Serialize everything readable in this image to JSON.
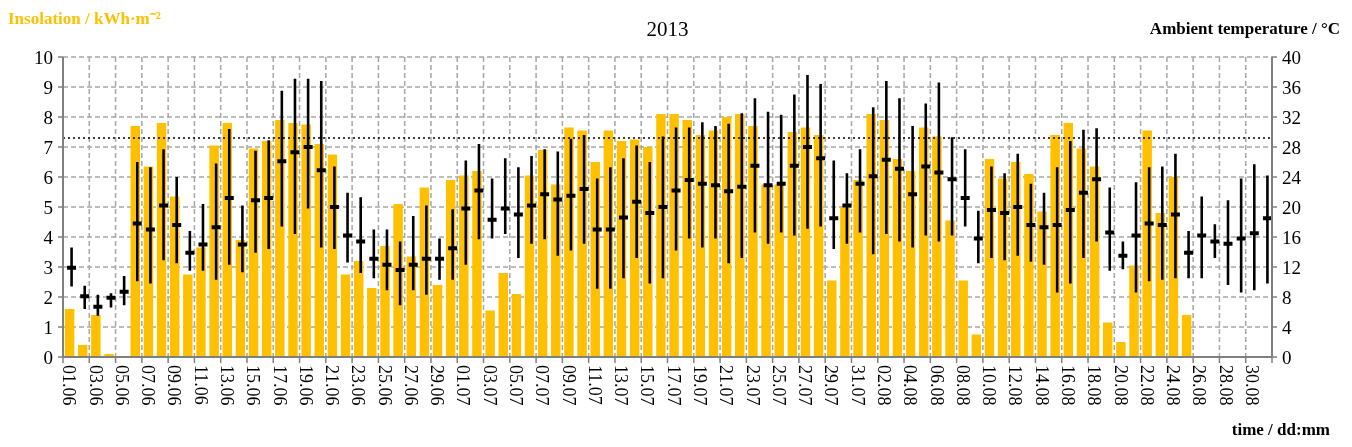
{
  "chart_data": {
    "type": "bar",
    "title": "2013",
    "xlabel": "time  / dd:mm",
    "ylabel": "Insolation  / kWh·m⁻²",
    "y2label": "Ambient temperature  / °C",
    "categories": [
      "01.06",
      null,
      "03.06",
      null,
      "05.06",
      null,
      "07.06",
      null,
      "09.06",
      null,
      "11.06",
      null,
      "13.06",
      null,
      "15.06",
      null,
      "17.06",
      null,
      "19.06",
      null,
      "21.06",
      null,
      "23.06",
      null,
      "25.06",
      null,
      "27.06",
      null,
      "29.06",
      null,
      "01.07",
      null,
      "03.07",
      null,
      "05.07",
      null,
      "07.07",
      null,
      "09.07",
      null,
      "11.07",
      null,
      "13.07",
      null,
      "15.07",
      null,
      "17.07",
      null,
      "19.07",
      null,
      "21.07",
      null,
      "23.07",
      null,
      "25.07",
      null,
      "27.07",
      null,
      "29.07",
      null,
      "31.07",
      null,
      "02.08",
      null,
      "04.08",
      null,
      "06.08",
      null,
      "08.08",
      null,
      "10.08",
      null,
      "12.08",
      null,
      "14.08",
      null,
      "16.08",
      null,
      "18.08",
      null,
      "20.08",
      null,
      "22.08",
      null,
      "24.08",
      null,
      "26.08",
      null,
      "28.08",
      null,
      "30.08",
      null
    ],
    "series": [
      {
        "color": "#ffc000",
        "values": [
          1.6,
          0.4,
          1.4,
          0.1,
          0,
          7.7,
          6.35,
          7.8,
          5.35,
          2.75,
          3.65,
          7.05,
          7.8,
          3.9,
          6.95,
          7.2,
          7.9,
          7.8,
          7.75,
          7.1,
          6.75,
          2.75,
          3.2,
          2.3,
          3.7,
          5.1,
          3.35,
          5.65,
          2.4,
          5.9,
          6.05,
          6.2,
          1.55,
          2.8,
          2.1,
          6.05,
          6.9,
          5.75,
          7.65,
          7.55,
          6.5,
          7.55,
          7.2,
          7.25,
          7.0,
          8.1,
          8.1,
          7.9,
          7.4,
          7.55,
          8.0,
          8.1,
          7.7,
          5.75,
          5.75,
          7.5,
          7.65,
          7.4,
          2.55,
          5.0,
          5.9,
          8.1,
          7.9,
          6.6,
          6.2,
          7.65,
          7.35,
          4.55,
          2.55,
          0.75,
          6.6,
          5.95,
          6.5,
          6.1,
          4.85,
          7.4,
          7.8,
          6.95,
          6.35,
          1.15,
          0.5,
          3.05,
          7.55,
          4.8,
          6.0,
          1.4,
          null,
          null,
          null,
          null,
          null,
          null
        ]
      },
      {
        "type": "scatter",
        "axis": "y2",
        "color": "#000000",
        "values": [
          11.9,
          8.1,
          6.7,
          7.9,
          8.7,
          17.8,
          17.0,
          20.2,
          17.6,
          13.9,
          15.0,
          17.3,
          21.2,
          15.0,
          20.9,
          21.2,
          26.1,
          27.3,
          28.0,
          24.9,
          20.0,
          16.2,
          15.4,
          13.1,
          12.3,
          11.6,
          12.3,
          13.1,
          13.1,
          14.5,
          19.8,
          22.2,
          18.3,
          19.8,
          19.0,
          20.2,
          21.7,
          21.0,
          21.5,
          22.4,
          17.0,
          17.0,
          18.6,
          20.7,
          19.2,
          20.0,
          22.2,
          23.6,
          23.1,
          22.9,
          22.1,
          22.7,
          25.5,
          22.9,
          23.1,
          25.5,
          28.0,
          26.5,
          18.5,
          20.2,
          23.1,
          24.1,
          26.3,
          25.1,
          21.7,
          25.4,
          24.6,
          23.7,
          21.2,
          15.8,
          19.6,
          19.2,
          20.0,
          17.6,
          17.3,
          17.6,
          19.6,
          21.9,
          23.7,
          16.6,
          13.5,
          16.2,
          17.8,
          17.6,
          19.0,
          13.9,
          16.2,
          15.4,
          15.1,
          15.8,
          16.5,
          18.5
        ],
        "errors": [
          [
            9.4,
            14.6
          ],
          [
            6.4,
            9.5
          ],
          [
            5.5,
            8.3
          ],
          [
            6.6,
            8.5
          ],
          [
            6.9,
            10.8
          ],
          [
            10.1,
            26.0
          ],
          [
            9.8,
            25.3
          ],
          [
            12.9,
            27.7
          ],
          [
            12.5,
            24.0
          ],
          [
            11.5,
            16.8
          ],
          [
            11.5,
            20.4
          ],
          [
            10.3,
            25.8
          ],
          [
            12.3,
            30.4
          ],
          [
            11.3,
            20.2
          ],
          [
            13.9,
            27.5
          ],
          [
            14.4,
            28.9
          ],
          [
            17.4,
            35.5
          ],
          [
            16.4,
            37.1
          ],
          [
            19.8,
            37.1
          ],
          [
            14.6,
            36.8
          ],
          [
            14.4,
            25.4
          ],
          [
            12.6,
            21.9
          ],
          [
            11.2,
            21.3
          ],
          [
            10.5,
            17.0
          ],
          [
            8.9,
            17.0
          ],
          [
            6.9,
            15.4
          ],
          [
            8.9,
            18.8
          ],
          [
            8.3,
            20.2
          ],
          [
            10.3,
            15.8
          ],
          [
            10.3,
            19.7
          ],
          [
            12.3,
            26.2
          ],
          [
            15.7,
            28.4
          ],
          [
            15.8,
            23.8
          ],
          [
            16.4,
            26.5
          ],
          [
            13.2,
            25.3
          ],
          [
            15.1,
            26.8
          ],
          [
            15.7,
            27.7
          ],
          [
            13.5,
            27.4
          ],
          [
            14.2,
            29.1
          ],
          [
            15.1,
            29.6
          ],
          [
            9.1,
            23.8
          ],
          [
            9.1,
            25.3
          ],
          [
            10.5,
            26.5
          ],
          [
            13.2,
            28.2
          ],
          [
            9.8,
            26.0
          ],
          [
            10.5,
            29.4
          ],
          [
            14.2,
            30.6
          ],
          [
            15.8,
            30.6
          ],
          [
            14.6,
            31.3
          ],
          [
            15.8,
            30.8
          ],
          [
            12.5,
            31.1
          ],
          [
            13.2,
            32.5
          ],
          [
            16.6,
            34.5
          ],
          [
            15.1,
            32.7
          ],
          [
            16.6,
            32.3
          ],
          [
            16.2,
            35.0
          ],
          [
            17.1,
            37.6
          ],
          [
            17.4,
            36.4
          ],
          [
            14.4,
            26.2
          ],
          [
            15.1,
            24.5
          ],
          [
            16.6,
            27.7
          ],
          [
            13.7,
            33.3
          ],
          [
            16.4,
            36.8
          ],
          [
            15.4,
            34.5
          ],
          [
            14.6,
            30.8
          ],
          [
            16.2,
            33.8
          ],
          [
            15.4,
            36.6
          ],
          [
            16.2,
            29.3
          ],
          [
            17.4,
            27.7
          ],
          [
            12.5,
            19.5
          ],
          [
            13.2,
            25.4
          ],
          [
            12.9,
            24.5
          ],
          [
            13.5,
            27.1
          ],
          [
            12.7,
            23.1
          ],
          [
            12.3,
            21.9
          ],
          [
            8.6,
            25.3
          ],
          [
            9.8,
            28.8
          ],
          [
            13.2,
            30.3
          ],
          [
            15.4,
            30.5
          ],
          [
            11.5,
            22.6
          ],
          [
            11.7,
            15.4
          ],
          [
            8.6,
            23.3
          ],
          [
            10.1,
            25.3
          ],
          [
            10.3,
            25.4
          ],
          [
            10.5,
            27.1
          ],
          [
            10.5,
            16.8
          ],
          [
            10.5,
            21.4
          ],
          [
            13.2,
            17.7
          ],
          [
            9.6,
            20.9
          ],
          [
            8.6,
            23.8
          ],
          [
            8.9,
            25.7
          ],
          [
            9.8,
            24.2
          ]
        ]
      }
    ],
    "ylim": [
      0,
      10
    ],
    "yticks": [
      0,
      1,
      2,
      3,
      4,
      5,
      6,
      7,
      8,
      9,
      10
    ],
    "y2lim": [
      0,
      40
    ],
    "y2ticks": [
      0,
      4,
      8,
      12,
      16,
      20,
      24,
      28,
      32,
      36,
      40
    ],
    "ref_lines": [
      {
        "axis": "y",
        "value": 7.3,
        "color": "#000000",
        "line_style": "dotted"
      }
    ],
    "grid": true
  }
}
